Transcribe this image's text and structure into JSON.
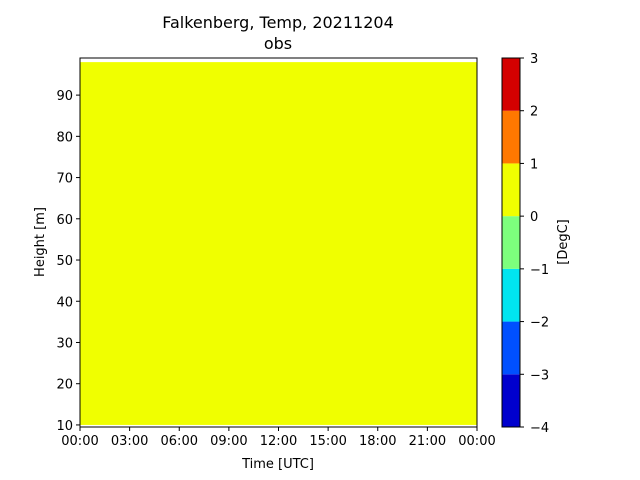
{
  "chart_data": {
    "type": "heatmap",
    "title": "Falkenberg, Temp, 20211204",
    "subtitle": "obs",
    "xlabel": "Time [UTC]",
    "ylabel": "Height [m]",
    "colorbar_label": "[DegC]",
    "xlim": [
      0,
      24
    ],
    "ylim": [
      9.5,
      99
    ],
    "x_ticks": [
      0,
      3,
      6,
      9,
      12,
      15,
      18,
      21,
      24
    ],
    "x_tick_labels": [
      "00:00",
      "03:00",
      "06:00",
      "09:00",
      "12:00",
      "15:00",
      "18:00",
      "21:00",
      "00:00"
    ],
    "y_ticks": [
      10,
      20,
      30,
      40,
      50,
      60,
      70,
      80,
      90
    ],
    "y_tick_labels": [
      "10",
      "20",
      "30",
      "40",
      "50",
      "60",
      "70",
      "80",
      "90"
    ],
    "field": {
      "x_range": [
        0,
        24
      ],
      "y_range": [
        10,
        98
      ],
      "value_bin": [
        0,
        1
      ],
      "color": "#f0ff00"
    },
    "colorbar": {
      "min": -4,
      "max": 3,
      "levels": [
        -4,
        -3,
        -2,
        -1,
        0,
        1,
        2,
        3
      ],
      "level_labels": [
        "−4",
        "−3",
        "−2",
        "−1",
        "0",
        "1",
        "2",
        "3"
      ],
      "colors": [
        "#0000cd",
        "#0050ff",
        "#00e5f0",
        "#7dff7d",
        "#f0ff00",
        "#ff7800",
        "#d40000"
      ]
    },
    "grid": false
  }
}
